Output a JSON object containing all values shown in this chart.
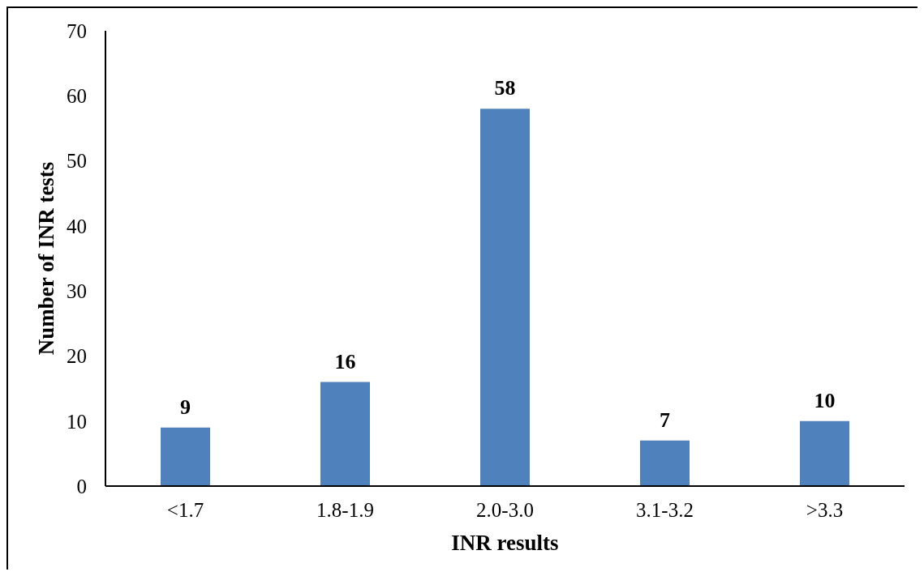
{
  "chart_data": {
    "type": "bar",
    "xlabel": "INR results",
    "ylabel": "Number of INR tests",
    "categories": [
      "<1.7",
      "1.8-1.9",
      "2.0-3.0",
      "3.1-3.2",
      ">3.3"
    ],
    "values": [
      9,
      16,
      58,
      7,
      10
    ],
    "color": "#4f81bd",
    "ylim": [
      0,
      70
    ],
    "yticks": [
      0,
      10,
      20,
      30,
      40,
      50,
      60,
      70
    ],
    "data_labels": true
  }
}
